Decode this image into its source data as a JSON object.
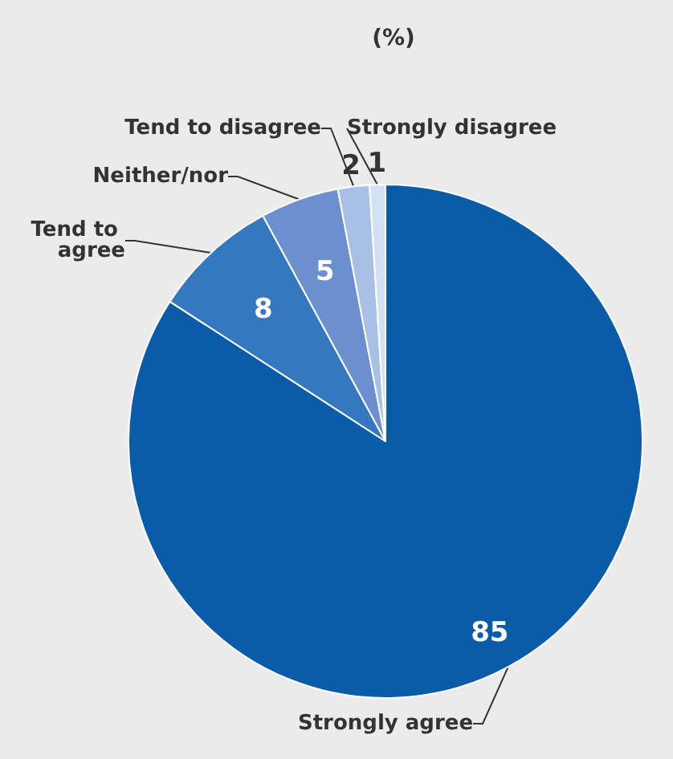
{
  "chart_data": {
    "type": "pie",
    "title": "(%)",
    "categories": [
      "Strongly agree",
      "Tend to agree",
      "Neither/nor",
      "Tend to disagree",
      "Strongly disagree"
    ],
    "values": [
      85,
      8,
      5,
      2,
      1
    ],
    "colors": [
      "#0b5ca8",
      "#3479c0",
      "#6b8fcf",
      "#a9c0e6",
      "#d3dff2"
    ],
    "data_labels": true,
    "legend": false
  }
}
